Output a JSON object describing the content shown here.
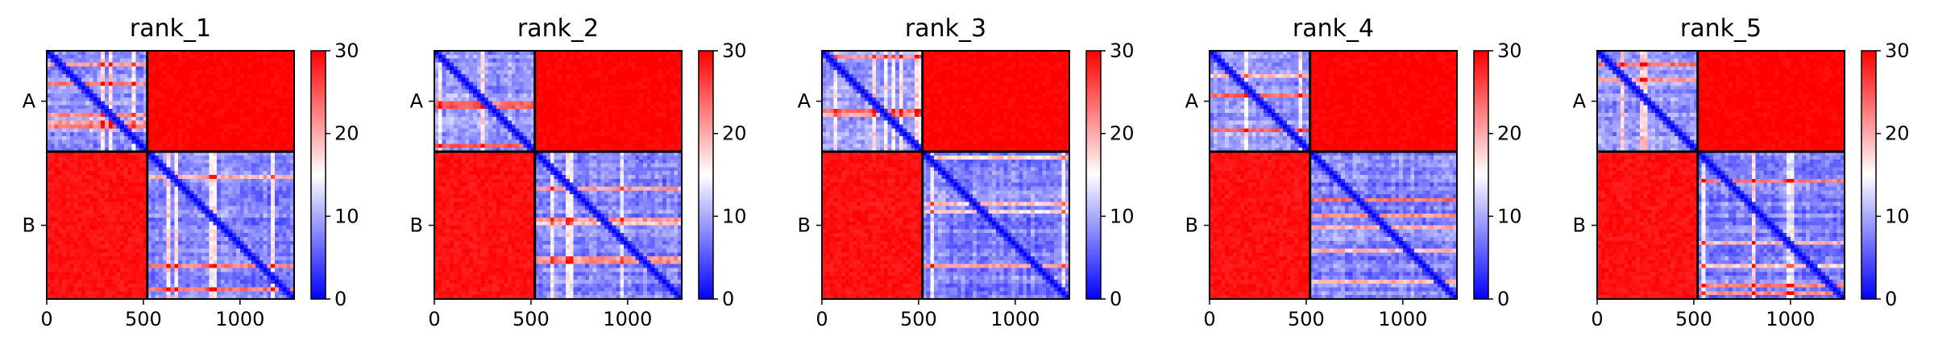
{
  "colors": {
    "cmap_low": "#0000ff",
    "cmap_mid": "#ffffff",
    "cmap_high": "#ff0000",
    "chain_border": "#000000"
  },
  "chart_data": [
    {
      "type": "heatmap",
      "title": "rank_1",
      "chains": [
        {
          "label": "A",
          "length": 520
        },
        {
          "label": "B",
          "length": 760
        }
      ],
      "x_ticks": [
        0,
        500,
        1000
      ],
      "y_tick_labels": [
        "A",
        "B"
      ],
      "color_range": [
        0,
        30
      ],
      "colorbar_ticks": [
        0,
        10,
        20,
        30
      ],
      "colormap": "bwr",
      "block_means": {
        "A-A": 10,
        "A-B": 30,
        "B-A": 29,
        "B-B": 9
      }
    },
    {
      "type": "heatmap",
      "title": "rank_2",
      "chains": [
        {
          "label": "A",
          "length": 520
        },
        {
          "label": "B",
          "length": 760
        }
      ],
      "x_ticks": [
        0,
        500,
        1000
      ],
      "y_tick_labels": [
        "A",
        "B"
      ],
      "color_range": [
        0,
        30
      ],
      "colorbar_ticks": [
        0,
        10,
        20,
        30
      ],
      "colormap": "bwr",
      "block_means": {
        "A-A": 10,
        "A-B": 30,
        "B-A": 29,
        "B-B": 9
      }
    },
    {
      "type": "heatmap",
      "title": "rank_3",
      "chains": [
        {
          "label": "A",
          "length": 520
        },
        {
          "label": "B",
          "length": 760
        }
      ],
      "x_ticks": [
        0,
        500,
        1000
      ],
      "y_tick_labels": [
        "A",
        "B"
      ],
      "color_range": [
        0,
        30
      ],
      "colorbar_ticks": [
        0,
        10,
        20,
        30
      ],
      "colormap": "bwr",
      "block_means": {
        "A-A": 10,
        "A-B": 30,
        "B-A": 29,
        "B-B": 9
      }
    },
    {
      "type": "heatmap",
      "title": "rank_4",
      "chains": [
        {
          "label": "A",
          "length": 520
        },
        {
          "label": "B",
          "length": 760
        }
      ],
      "x_ticks": [
        0,
        500,
        1000
      ],
      "y_tick_labels": [
        "A",
        "B"
      ],
      "color_range": [
        0,
        30
      ],
      "colorbar_ticks": [
        0,
        10,
        20,
        30
      ],
      "colormap": "bwr",
      "block_means": {
        "A-A": 10,
        "A-B": 30,
        "B-A": 29,
        "B-B": 9
      }
    },
    {
      "type": "heatmap",
      "title": "rank_5",
      "chains": [
        {
          "label": "A",
          "length": 520
        },
        {
          "label": "B",
          "length": 760
        }
      ],
      "x_ticks": [
        0,
        500,
        1000
      ],
      "y_tick_labels": [
        "A",
        "B"
      ],
      "color_range": [
        0,
        30
      ],
      "colorbar_ticks": [
        0,
        10,
        20,
        30
      ],
      "colormap": "bwr",
      "block_means": {
        "A-A": 10,
        "A-B": 30,
        "B-A": 29,
        "B-B": 9
      }
    }
  ]
}
